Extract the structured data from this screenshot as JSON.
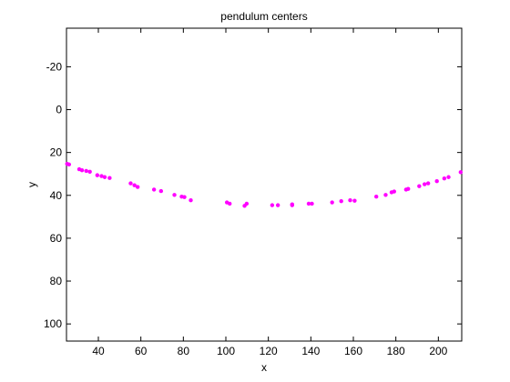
{
  "chart_data": {
    "type": "scatter",
    "title": "pendulum centers",
    "xlabel": "x",
    "ylabel": "y",
    "xlim": [
      25,
      211
    ],
    "ylim": [
      108,
      -38
    ],
    "y_axis_reversed": true,
    "x_ticks": [
      40,
      60,
      80,
      100,
      120,
      140,
      160,
      180,
      200
    ],
    "y_ticks": [
      -20,
      0,
      20,
      40,
      60,
      80,
      100
    ],
    "x_tick_labels": [
      "40",
      "60",
      "80",
      "100",
      "120",
      "140",
      "160",
      "180",
      "200"
    ],
    "y_tick_labels": [
      "-20",
      "0",
      "20",
      "40",
      "60",
      "80",
      "100"
    ],
    "grid": false,
    "marker_color": "#ff00ff",
    "points": [
      [
        25.3,
        25.3
      ],
      [
        26.2,
        25.6
      ],
      [
        31.0,
        27.8
      ],
      [
        32.3,
        28.3
      ],
      [
        34.3,
        28.6
      ],
      [
        36.0,
        29.0
      ],
      [
        39.5,
        30.6
      ],
      [
        41.5,
        31.0
      ],
      [
        43.0,
        31.5
      ],
      [
        45.3,
        31.9
      ],
      [
        55.2,
        34.4
      ],
      [
        57.0,
        35.3
      ],
      [
        58.5,
        36.1
      ],
      [
        66.2,
        37.3
      ],
      [
        69.5,
        38.0
      ],
      [
        75.8,
        39.8
      ],
      [
        79.2,
        40.6
      ],
      [
        80.5,
        40.8
      ],
      [
        83.5,
        42.3
      ],
      [
        100.5,
        43.3
      ],
      [
        101.8,
        43.9
      ],
      [
        108.8,
        44.9
      ],
      [
        109.8,
        43.9
      ],
      [
        121.8,
        44.6
      ],
      [
        124.5,
        44.6
      ],
      [
        131.2,
        44.6
      ],
      [
        131.2,
        44.2
      ],
      [
        139.0,
        43.9
      ],
      [
        140.5,
        43.9
      ],
      [
        150.0,
        43.3
      ],
      [
        154.3,
        42.7
      ],
      [
        158.5,
        42.3
      ],
      [
        160.6,
        42.5
      ],
      [
        170.8,
        40.6
      ],
      [
        175.2,
        39.8
      ],
      [
        178.0,
        38.6
      ],
      [
        179.2,
        38.2
      ],
      [
        184.8,
        37.3
      ],
      [
        185.8,
        37.0
      ],
      [
        191.0,
        35.7
      ],
      [
        193.5,
        34.8
      ],
      [
        195.2,
        34.4
      ],
      [
        199.3,
        33.4
      ],
      [
        202.8,
        32.1
      ],
      [
        204.8,
        31.5
      ],
      [
        210.5,
        29.2
      ]
    ]
  }
}
